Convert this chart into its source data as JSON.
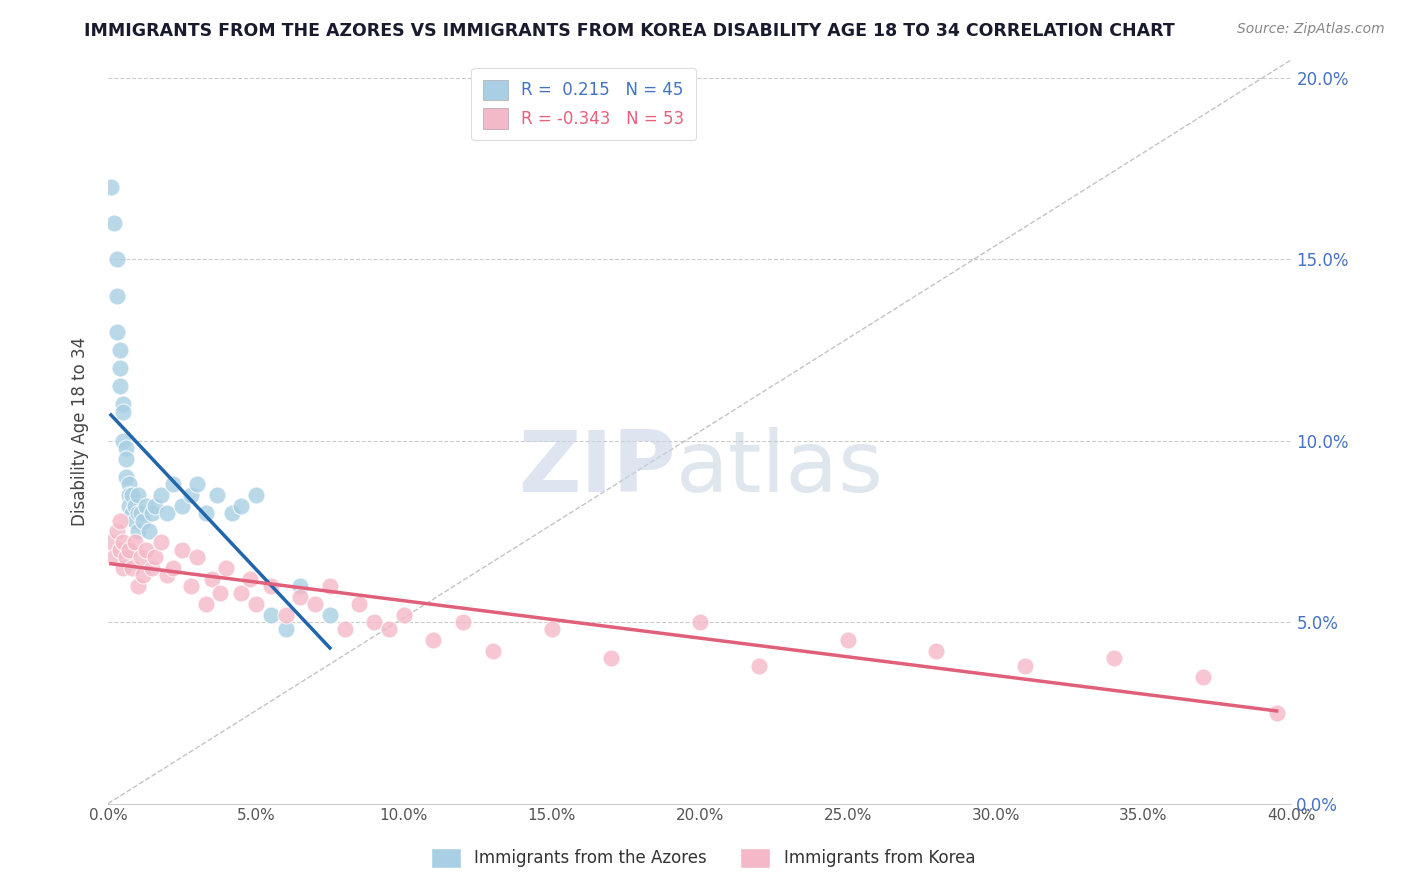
{
  "title": "IMMIGRANTS FROM THE AZORES VS IMMIGRANTS FROM KOREA DISABILITY AGE 18 TO 34 CORRELATION CHART",
  "source": "Source: ZipAtlas.com",
  "ylabel": "Disability Age 18 to 34",
  "watermark_zip": "ZIP",
  "watermark_atlas": "atlas",
  "legend1_label": "Immigrants from the Azores",
  "legend2_label": "Immigrants from Korea",
  "R1": 0.215,
  "N1": 45,
  "R2": -0.343,
  "N2": 53,
  "xlim": [
    0.0,
    0.4
  ],
  "ylim": [
    0.0,
    0.205
  ],
  "xticks": [
    0.0,
    0.05,
    0.1,
    0.15,
    0.2,
    0.25,
    0.3,
    0.35,
    0.4
  ],
  "yticks": [
    0.0,
    0.05,
    0.1,
    0.15,
    0.2
  ],
  "color_azores": "#a8cfe3",
  "color_korea": "#f5b8c8",
  "line_color_azores": "#2166ac",
  "line_color_korea": "#e0607a",
  "background_color": "#ffffff",
  "azores_x": [
    0.001,
    0.002,
    0.003,
    0.003,
    0.003,
    0.004,
    0.004,
    0.004,
    0.005,
    0.005,
    0.005,
    0.006,
    0.006,
    0.006,
    0.007,
    0.007,
    0.007,
    0.008,
    0.008,
    0.009,
    0.009,
    0.01,
    0.01,
    0.01,
    0.011,
    0.012,
    0.013,
    0.014,
    0.015,
    0.016,
    0.018,
    0.02,
    0.022,
    0.025,
    0.028,
    0.03,
    0.033,
    0.037,
    0.042,
    0.045,
    0.05,
    0.055,
    0.06,
    0.065,
    0.075
  ],
  "azores_y": [
    0.17,
    0.16,
    0.15,
    0.14,
    0.13,
    0.125,
    0.12,
    0.115,
    0.11,
    0.108,
    0.1,
    0.098,
    0.095,
    0.09,
    0.088,
    0.085,
    0.082,
    0.08,
    0.085,
    0.078,
    0.082,
    0.075,
    0.08,
    0.085,
    0.08,
    0.078,
    0.082,
    0.075,
    0.08,
    0.082,
    0.085,
    0.08,
    0.088,
    0.082,
    0.085,
    0.088,
    0.08,
    0.085,
    0.08,
    0.082,
    0.085,
    0.052,
    0.048,
    0.06,
    0.052
  ],
  "korea_x": [
    0.001,
    0.002,
    0.003,
    0.004,
    0.004,
    0.005,
    0.005,
    0.006,
    0.007,
    0.008,
    0.009,
    0.01,
    0.011,
    0.012,
    0.013,
    0.015,
    0.016,
    0.018,
    0.02,
    0.022,
    0.025,
    0.028,
    0.03,
    0.033,
    0.035,
    0.038,
    0.04,
    0.045,
    0.048,
    0.05,
    0.055,
    0.06,
    0.065,
    0.07,
    0.075,
    0.08,
    0.085,
    0.09,
    0.095,
    0.1,
    0.11,
    0.12,
    0.13,
    0.15,
    0.17,
    0.2,
    0.22,
    0.25,
    0.28,
    0.31,
    0.34,
    0.37,
    0.395
  ],
  "korea_y": [
    0.072,
    0.068,
    0.075,
    0.07,
    0.078,
    0.065,
    0.072,
    0.068,
    0.07,
    0.065,
    0.072,
    0.06,
    0.068,
    0.063,
    0.07,
    0.065,
    0.068,
    0.072,
    0.063,
    0.065,
    0.07,
    0.06,
    0.068,
    0.055,
    0.062,
    0.058,
    0.065,
    0.058,
    0.062,
    0.055,
    0.06,
    0.052,
    0.057,
    0.055,
    0.06,
    0.048,
    0.055,
    0.05,
    0.048,
    0.052,
    0.045,
    0.05,
    0.042,
    0.048,
    0.04,
    0.05,
    0.038,
    0.045,
    0.042,
    0.038,
    0.04,
    0.035,
    0.025
  ]
}
